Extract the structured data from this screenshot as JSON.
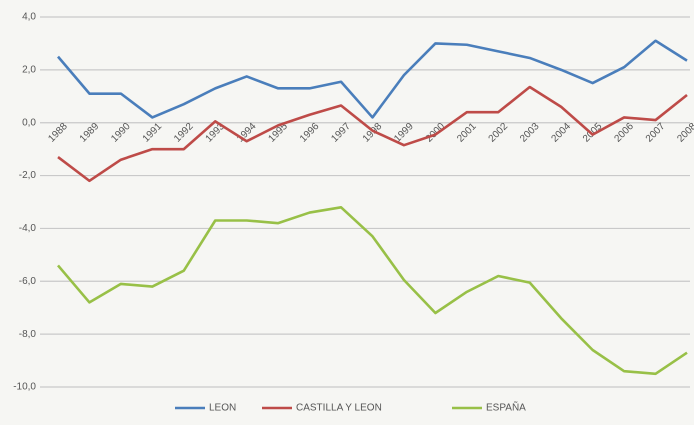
{
  "chart_data": {
    "type": "line",
    "categories": [
      "1988",
      "1989",
      "1990",
      "1991",
      "1992",
      "1993",
      "1994",
      "1995",
      "1996",
      "1997",
      "1998",
      "1999",
      "2000",
      "2001",
      "2002",
      "2003",
      "2004",
      "2005",
      "2006",
      "2007",
      "2008"
    ],
    "series": [
      {
        "name": "LEON",
        "color": "#4a7ebb",
        "values": [
          2.5,
          1.1,
          1.1,
          0.2,
          0.7,
          1.3,
          1.75,
          1.3,
          1.3,
          1.55,
          0.2,
          1.8,
          3.0,
          2.95,
          2.7,
          2.45,
          2.0,
          1.5,
          2.1,
          3.1,
          2.35
        ]
      },
      {
        "name": "CASTILLA Y LEON",
        "color": "#be4b48",
        "values": [
          -1.3,
          -2.2,
          -1.4,
          -1.0,
          -1.0,
          0.05,
          -0.7,
          -0.1,
          0.3,
          0.65,
          -0.3,
          -0.85,
          -0.45,
          0.4,
          0.4,
          1.35,
          0.6,
          -0.45,
          0.2,
          0.1,
          1.05
        ]
      },
      {
        "name": "ESPAÑA",
        "color": "#98c047",
        "values": [
          -5.4,
          -6.8,
          -6.1,
          -6.2,
          -5.6,
          -3.7,
          -3.7,
          -3.8,
          -3.4,
          -3.2,
          -4.3,
          -5.95,
          -7.2,
          -6.4,
          -5.8,
          -6.05,
          -7.4,
          -8.6,
          -9.4,
          -9.5,
          -8.7
        ]
      }
    ],
    "ylim": [
      -10,
      4
    ],
    "yticks": [
      {
        "value": -10,
        "label": "-10,0"
      },
      {
        "value": -8,
        "label": "-8,0"
      },
      {
        "value": -6,
        "label": "-6,0"
      },
      {
        "value": -4,
        "label": "-4,0"
      },
      {
        "value": -2,
        "label": "-2,0"
      },
      {
        "value": 0,
        "label": "0,0"
      },
      {
        "value": 2,
        "label": "2,0"
      },
      {
        "value": 4,
        "label": "4,0"
      }
    ],
    "grid": true
  }
}
